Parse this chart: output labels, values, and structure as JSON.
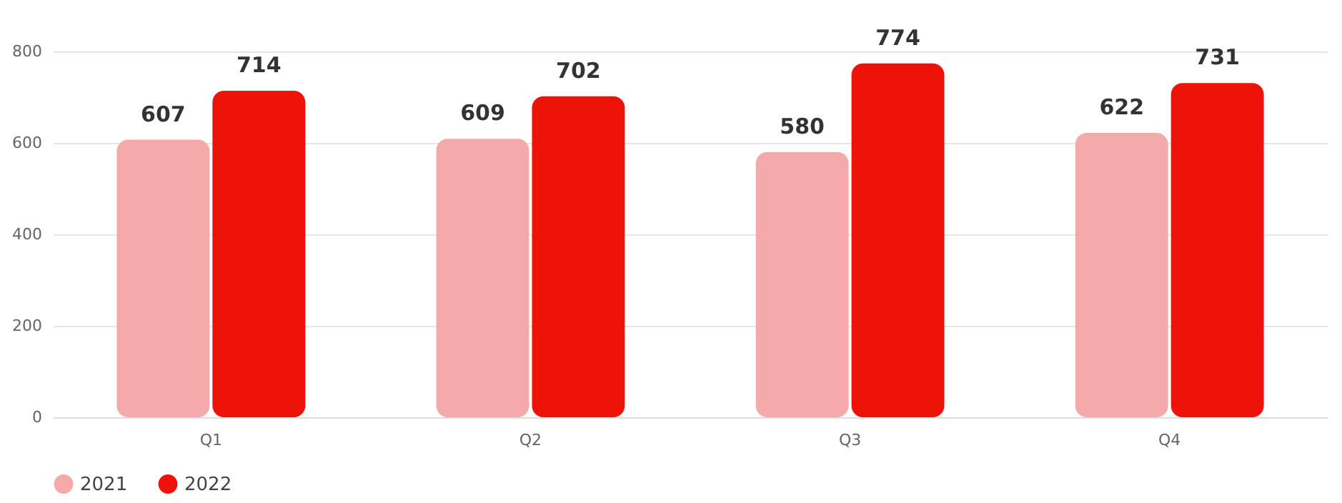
{
  "chart_data": {
    "type": "bar",
    "categories": [
      "Q1",
      "Q2",
      "Q3",
      "Q4"
    ],
    "series": [
      {
        "name": "2021",
        "color": "#f5aaaa",
        "values": [
          607,
          609,
          580,
          622
        ]
      },
      {
        "name": "2022",
        "color": "#ee1309",
        "values": [
          714,
          702,
          774,
          731
        ]
      }
    ],
    "ylim": [
      0,
      800
    ],
    "yticks": [
      0,
      200,
      400,
      600,
      800
    ],
    "grid": "y",
    "legend": "bottom",
    "data_labels": true
  }
}
